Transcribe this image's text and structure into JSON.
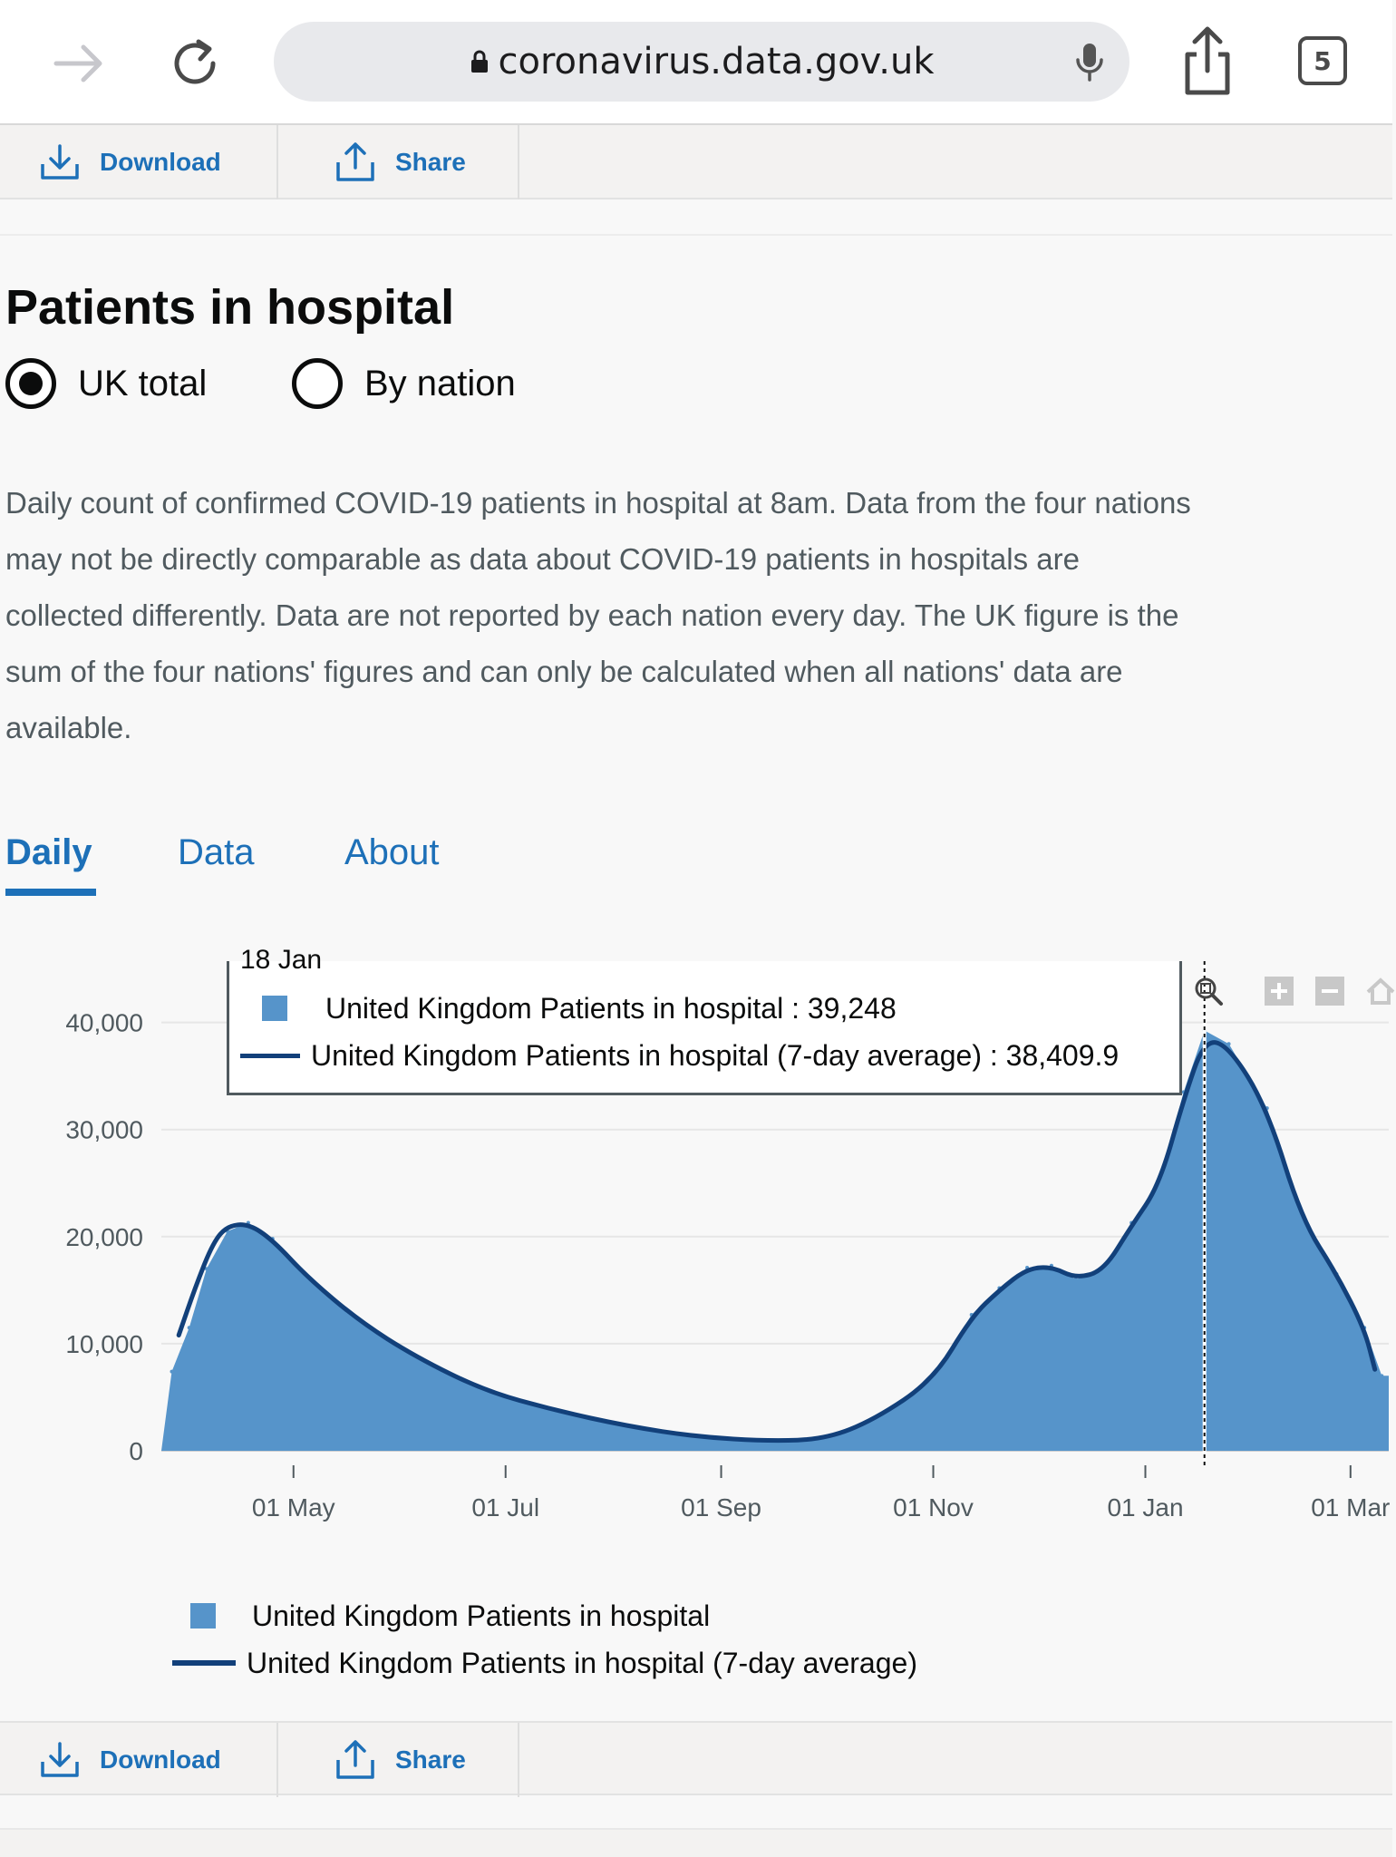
{
  "browser": {
    "url": "coronavirus.data.gov.uk",
    "tab_count": "5"
  },
  "actions": {
    "download_label": "Download",
    "share_label": "Share"
  },
  "heading": {
    "title": "Patients in hospital",
    "radio_uk": "UK total",
    "radio_nation": "By nation",
    "selected": "UK total"
  },
  "description": "Daily count of confirmed COVID-19 patients in hospital at 8am. Data from the four nations may not be directly comparable as data about COVID-19 patients in hospitals are collected differently. Data are not reported by each nation every day. The UK figure is the sum of the four nations' figures and can only be calculated when all nations' data are available.",
  "tabs": {
    "daily": "Daily",
    "data": "Data",
    "about": "About",
    "active": "Daily"
  },
  "tooltip": {
    "date": "18 Jan",
    "row1": "United Kingdom Patients in hospital : 39,248",
    "row2": "United Kingdom Patients in hospital (7-day average) : 38,409.9"
  },
  "legend": {
    "bar_series": "United Kingdom Patients in hospital",
    "line_series": "United Kingdom Patients in hospital (7-day average)"
  },
  "colors": {
    "bar": "#5694ca",
    "line": "#12407a",
    "link": "#1d70b8"
  },
  "icons": {
    "forward": "forward-arrow-icon",
    "reload": "reload-icon",
    "lock": "lock-icon",
    "mic": "microphone-icon",
    "share": "share-icon",
    "download": "download-icon",
    "zoom": "zoom-icon",
    "plus": "zoom-in-icon",
    "minus": "zoom-out-icon",
    "home": "home-icon"
  },
  "chart_data": {
    "type": "area",
    "x_ticks": [
      "01 May",
      "01 Jul",
      "01 Sep",
      "01 Nov",
      "01 Jan",
      "01 Mar"
    ],
    "y_ticks": [
      "0",
      "10,000",
      "20,000",
      "30,000",
      "40,000"
    ],
    "ylim": [
      0,
      42000
    ],
    "highlight_date": "18 Jan",
    "series": [
      {
        "name": "United Kingdom Patients in hospital",
        "kind": "bar",
        "x": [
          "27 Mar",
          "01 Apr",
          "06 Apr",
          "12 Apr",
          "18 Apr",
          "25 Apr",
          "05 May",
          "20 May",
          "05 Jun",
          "25 Jun",
          "15 Jul",
          "05 Aug",
          "25 Aug",
          "15 Sep",
          "01 Oct",
          "15 Oct",
          "01 Nov",
          "12 Nov",
          "20 Nov",
          "28 Nov",
          "05 Dec",
          "12 Dec",
          "20 Dec",
          "28 Dec",
          "05 Jan",
          "12 Jan",
          "18 Jan",
          "25 Jan",
          "05 Feb",
          "15 Feb",
          "25 Feb",
          "05 Mar",
          "10 Mar"
        ],
        "y": [
          7400,
          11500,
          17000,
          20500,
          21300,
          19800,
          16200,
          12100,
          8800,
          5600,
          3800,
          2300,
          1300,
          900,
          1100,
          3000,
          6800,
          12700,
          15200,
          17100,
          17300,
          16000,
          17000,
          21300,
          25000,
          33500,
          39248,
          38000,
          32000,
          21800,
          16500,
          11500,
          7000
        ]
      },
      {
        "name": "United Kingdom Patients in hospital (7-day average)",
        "kind": "line",
        "x": [
          "29 Mar",
          "03 Apr",
          "08 Apr",
          "12 Apr",
          "18 Apr",
          "25 Apr",
          "05 May",
          "20 May",
          "05 Jun",
          "25 Jun",
          "15 Jul",
          "05 Aug",
          "25 Aug",
          "15 Sep",
          "01 Oct",
          "15 Oct",
          "01 Nov",
          "12 Nov",
          "20 Nov",
          "28 Nov",
          "05 Dec",
          "12 Dec",
          "20 Dec",
          "28 Dec",
          "05 Jan",
          "12 Jan",
          "18 Jan",
          "25 Jan",
          "05 Feb",
          "15 Feb",
          "25 Feb",
          "05 Mar",
          "08 Mar"
        ],
        "y": [
          10800,
          15500,
          19500,
          21000,
          21200,
          19700,
          16200,
          12100,
          8800,
          5600,
          3800,
          2300,
          1300,
          900,
          1100,
          2900,
          6600,
          12500,
          15000,
          17000,
          17200,
          16100,
          16800,
          21000,
          24800,
          32800,
          38409.9,
          37800,
          32000,
          21600,
          16500,
          11400,
          7600
        ]
      }
    ]
  }
}
